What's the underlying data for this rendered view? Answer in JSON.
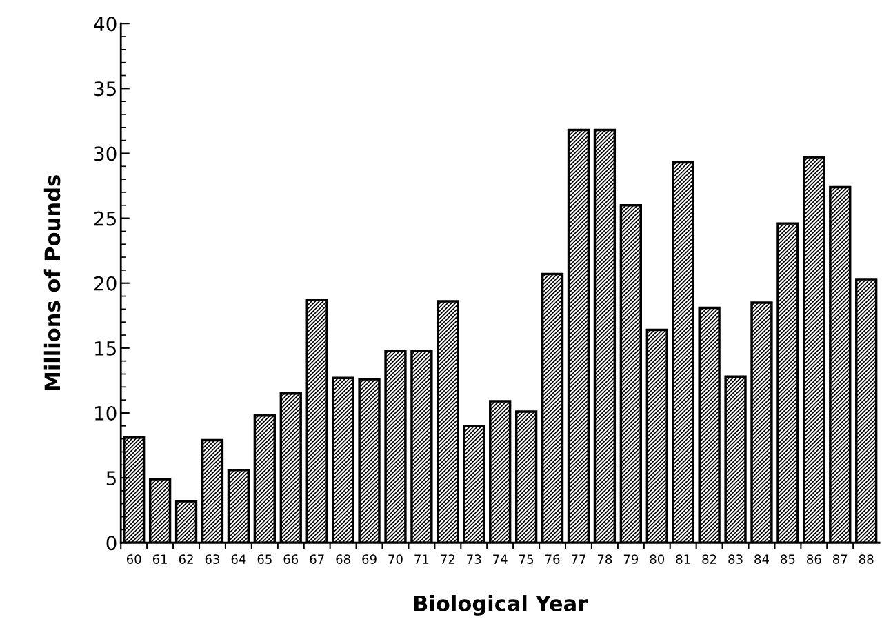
{
  "chart_data": {
    "type": "bar",
    "xlabel": "Biological Year",
    "ylabel": "Millions of Pounds",
    "categories": [
      "60",
      "61",
      "62",
      "63",
      "64",
      "65",
      "66",
      "67",
      "68",
      "69",
      "70",
      "71",
      "72",
      "73",
      "74",
      "75",
      "76",
      "77",
      "78",
      "79",
      "80",
      "81",
      "82",
      "83",
      "84",
      "85",
      "86",
      "87",
      "88"
    ],
    "values": [
      8.1,
      4.9,
      3.2,
      7.9,
      5.6,
      9.8,
      11.5,
      18.7,
      12.7,
      12.6,
      14.8,
      14.8,
      18.6,
      9.0,
      10.9,
      10.1,
      20.7,
      31.8,
      31.8,
      26.0,
      16.4,
      29.3,
      18.1,
      12.8,
      18.5,
      24.6,
      29.7,
      27.4,
      20.3
    ],
    "color": "#000000",
    "ylim": [
      0,
      40
    ],
    "yticks": [
      0,
      5,
      10,
      15,
      20,
      25,
      30,
      35,
      40
    ],
    "grid": false
  }
}
